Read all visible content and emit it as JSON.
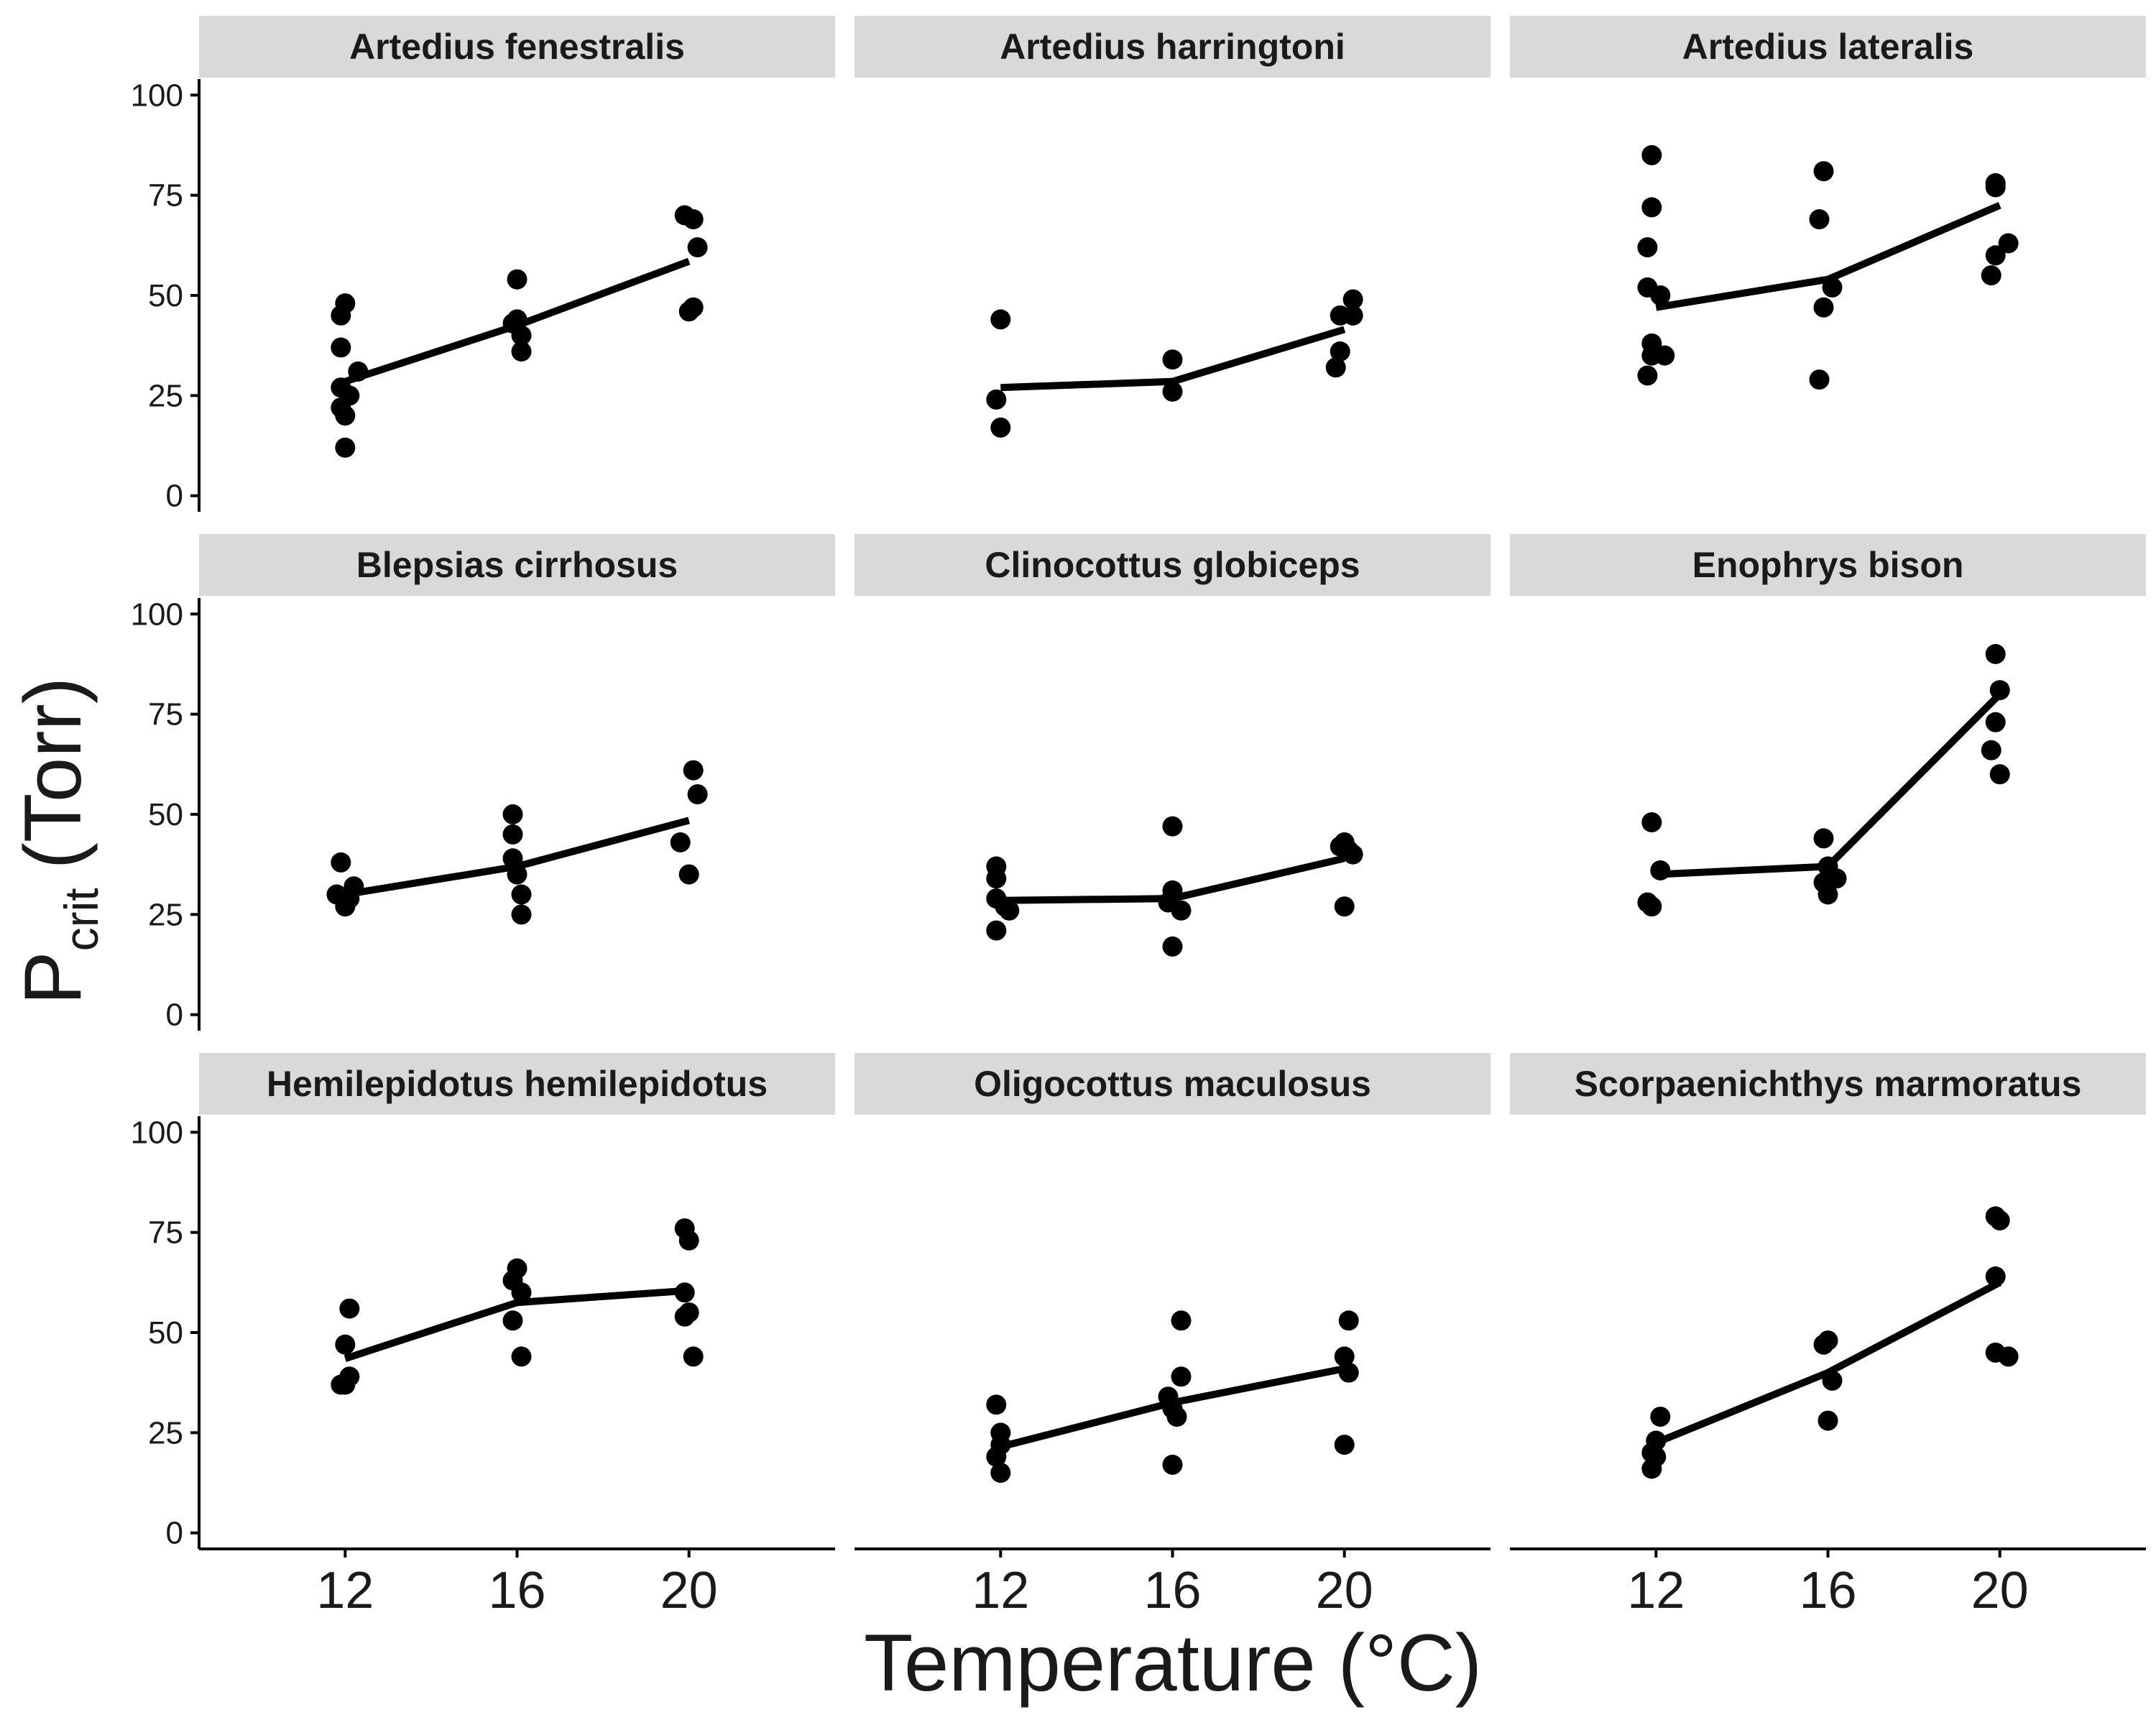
{
  "chart_data": {
    "type": "scatter",
    "layout": "facet-grid 3x3, shared axes",
    "ylabel_main": "P",
    "ylabel_sub": "crit",
    "ylabel_unit": "(Torr)",
    "xlabel": "Temperature (°C)",
    "x_ticks": [
      12,
      16,
      20
    ],
    "y_ticks": [
      0,
      25,
      50,
      75,
      100
    ],
    "xlim": [
      8.6,
      23.4
    ],
    "ylim": [
      -4,
      104
    ],
    "grid": false,
    "colors": {
      "points": "#000000",
      "line": "#000000",
      "strip": "#d9d9d9",
      "axis": "#000000"
    },
    "panels": [
      {
        "title": "Artedius fenestralis",
        "points": [
          [
            11.9,
            45
          ],
          [
            12.0,
            48
          ],
          [
            11.9,
            37
          ],
          [
            12.3,
            31
          ],
          [
            11.9,
            27
          ],
          [
            12.1,
            25
          ],
          [
            11.9,
            22
          ],
          [
            12.0,
            20
          ],
          [
            12.0,
            12
          ],
          [
            16.0,
            44
          ],
          [
            15.9,
            43
          ],
          [
            16.1,
            40
          ],
          [
            16.1,
            36
          ],
          [
            16.0,
            54
          ],
          [
            19.9,
            70
          ],
          [
            20.1,
            69
          ],
          [
            20.2,
            62
          ],
          [
            20.1,
            47
          ],
          [
            20.0,
            46
          ]
        ],
        "fit": [
          [
            12.0,
            28.5
          ],
          [
            16.0,
            42.5
          ],
          [
            20.0,
            58.5
          ]
        ]
      },
      {
        "title": "Artedius harringtoni",
        "points": [
          [
            12.0,
            44
          ],
          [
            11.9,
            24
          ],
          [
            12.0,
            17
          ],
          [
            16.0,
            34
          ],
          [
            16.0,
            26
          ],
          [
            19.9,
            45
          ],
          [
            20.2,
            45
          ],
          [
            20.2,
            49
          ],
          [
            19.9,
            36
          ],
          [
            19.8,
            32
          ]
        ],
        "fit": [
          [
            12.0,
            27
          ],
          [
            16.0,
            28.5
          ],
          [
            20.0,
            41.5
          ]
        ]
      },
      {
        "title": "Artedius lateralis",
        "points": [
          [
            11.9,
            85
          ],
          [
            11.9,
            72
          ],
          [
            11.8,
            62
          ],
          [
            11.8,
            52
          ],
          [
            12.1,
            50
          ],
          [
            11.9,
            38
          ],
          [
            11.9,
            35
          ],
          [
            12.2,
            35
          ],
          [
            11.8,
            30
          ],
          [
            15.9,
            81
          ],
          [
            15.8,
            69
          ],
          [
            16.1,
            52
          ],
          [
            15.9,
            47
          ],
          [
            15.8,
            29
          ],
          [
            19.9,
            78
          ],
          [
            19.9,
            77
          ],
          [
            20.2,
            63
          ],
          [
            19.9,
            60
          ],
          [
            19.8,
            55
          ]
        ],
        "fit": [
          [
            12.0,
            47
          ],
          [
            16.0,
            54
          ],
          [
            20.0,
            72.5
          ]
        ]
      },
      {
        "title": "Blepsias cirrhosus",
        "points": [
          [
            11.9,
            38
          ],
          [
            12.2,
            32
          ],
          [
            11.8,
            30
          ],
          [
            12.1,
            29
          ],
          [
            12.0,
            27
          ],
          [
            15.9,
            50
          ],
          [
            15.9,
            45
          ],
          [
            15.9,
            39
          ],
          [
            16.0,
            35
          ],
          [
            16.1,
            30
          ],
          [
            16.1,
            25
          ],
          [
            20.1,
            61
          ],
          [
            20.2,
            55
          ],
          [
            19.8,
            43
          ],
          [
            20.0,
            35
          ]
        ],
        "fit": [
          [
            12.0,
            30
          ],
          [
            16.0,
            37
          ],
          [
            20.0,
            48.5
          ]
        ]
      },
      {
        "title": "Clinocottus globiceps",
        "points": [
          [
            11.9,
            37
          ],
          [
            11.9,
            34
          ],
          [
            11.9,
            29
          ],
          [
            12.1,
            27
          ],
          [
            12.2,
            26
          ],
          [
            11.9,
            21
          ],
          [
            16.0,
            47
          ],
          [
            16.0,
            31
          ],
          [
            15.9,
            28
          ],
          [
            16.2,
            26
          ],
          [
            16.0,
            17
          ],
          [
            20.0,
            43
          ],
          [
            19.9,
            42
          ],
          [
            20.1,
            41
          ],
          [
            20.2,
            40
          ],
          [
            20.0,
            27
          ]
        ],
        "fit": [
          [
            12.0,
            28.5
          ],
          [
            16.0,
            29
          ],
          [
            20.0,
            39
          ]
        ]
      },
      {
        "title": "Enophrys bison",
        "points": [
          [
            11.9,
            48
          ],
          [
            11.8,
            28
          ],
          [
            11.9,
            27
          ],
          [
            12.1,
            36
          ],
          [
            15.9,
            44
          ],
          [
            16.0,
            37
          ],
          [
            15.9,
            33
          ],
          [
            16.0,
            30
          ],
          [
            16.2,
            34
          ],
          [
            19.9,
            90
          ],
          [
            20.0,
            81
          ],
          [
            19.9,
            73
          ],
          [
            19.8,
            66
          ],
          [
            20.0,
            60
          ]
        ],
        "fit": [
          [
            12.0,
            35
          ],
          [
            16.0,
            37
          ],
          [
            20.0,
            80
          ]
        ]
      },
      {
        "title": "Hemilepidotus hemilepidotus",
        "points": [
          [
            12.1,
            56
          ],
          [
            12.0,
            47
          ],
          [
            12.1,
            39
          ],
          [
            12.0,
            37
          ],
          [
            11.9,
            37
          ],
          [
            16.0,
            66
          ],
          [
            15.9,
            63
          ],
          [
            16.1,
            60
          ],
          [
            15.9,
            53
          ],
          [
            16.1,
            44
          ],
          [
            19.9,
            76
          ],
          [
            20.0,
            73
          ],
          [
            19.9,
            60
          ],
          [
            20.0,
            55
          ],
          [
            19.9,
            54
          ],
          [
            20.1,
            44
          ]
        ],
        "fit": [
          [
            12.0,
            43.5
          ],
          [
            16.0,
            57.5
          ],
          [
            20.0,
            60.5
          ]
        ]
      },
      {
        "title": "Oligocottus maculosus",
        "points": [
          [
            11.9,
            32
          ],
          [
            12.0,
            25
          ],
          [
            12.0,
            22
          ],
          [
            11.9,
            19
          ],
          [
            12.0,
            15
          ],
          [
            16.2,
            53
          ],
          [
            16.2,
            39
          ],
          [
            15.9,
            34
          ],
          [
            16.0,
            31
          ],
          [
            16.1,
            29
          ],
          [
            16.0,
            17
          ],
          [
            20.1,
            53
          ],
          [
            20.0,
            44
          ],
          [
            20.1,
            40
          ],
          [
            20.0,
            22
          ]
        ],
        "fit": [
          [
            12.0,
            21.5
          ],
          [
            16.0,
            32.5
          ],
          [
            20.0,
            41
          ]
        ]
      },
      {
        "title": "Scorpaenichthys marmoratus",
        "points": [
          [
            12.1,
            29
          ],
          [
            12.0,
            23
          ],
          [
            11.9,
            20
          ],
          [
            12.0,
            19
          ],
          [
            11.9,
            16
          ],
          [
            15.9,
            47
          ],
          [
            16.0,
            48
          ],
          [
            16.1,
            38
          ],
          [
            16.0,
            28
          ],
          [
            19.9,
            79
          ],
          [
            20.0,
            78
          ],
          [
            19.9,
            64
          ],
          [
            19.9,
            45
          ],
          [
            20.2,
            44
          ]
        ],
        "fit": [
          [
            12.0,
            22.5
          ],
          [
            16.0,
            40
          ],
          [
            20.0,
            62.5
          ]
        ]
      }
    ]
  }
}
